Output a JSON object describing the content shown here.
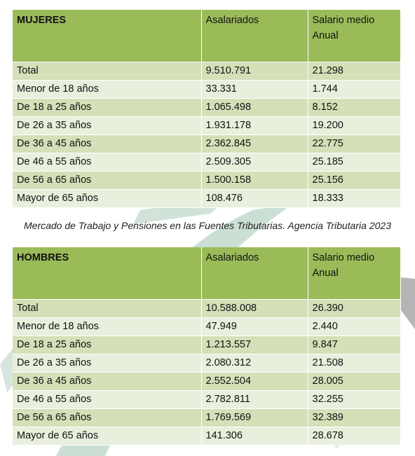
{
  "caption": "Mercado de Trabajo y Pensiones en las Fuentes Tributarias. Agencia Tributaria 2023",
  "mujeres": {
    "title": "MUJERES",
    "col_asalariados": "Asalariados",
    "col_salario_l1": "Salario medio",
    "col_salario_l2": "Anual",
    "rows": [
      {
        "label": "Total",
        "asalariados": "9.510.791",
        "salario": "21.298"
      },
      {
        "label": "Menor de 18 años",
        "asalariados": "33.331",
        "salario": "1.744"
      },
      {
        "label": "De 18 a 25 años",
        "asalariados": "1.065.498",
        "salario": "8.152"
      },
      {
        "label": "De 26 a 35 años",
        "asalariados": "1.931.178",
        "salario": "19.200"
      },
      {
        "label": "De 36 a 45 años",
        "asalariados": "2.362.845",
        "salario": "22.775"
      },
      {
        "label": "De 46 a 55 años",
        "asalariados": "2.509.305",
        "salario": "25.185"
      },
      {
        "label": "De 56 a 65 años",
        "asalariados": "1.500.158",
        "salario": "25.156"
      },
      {
        "label": "Mayor de 65 años",
        "asalariados": "108.476",
        "salario": "18.333"
      }
    ]
  },
  "hombres": {
    "title": "HOMBRES",
    "col_asalariados": "Asalariados",
    "col_salario_l1": "Salario medio",
    "col_salario_l2": "Anual",
    "rows": [
      {
        "label": "Total",
        "asalariados": "10.588.008",
        "salario": "26.390"
      },
      {
        "label": "Menor de 18 años",
        "asalariados": "47.949",
        "salario": "2.440"
      },
      {
        "label": "De 18 a 25 años",
        "asalariados": "1.213.557",
        "salario": "9.847"
      },
      {
        "label": "De 26 a 35 años",
        "asalariados": "2.080.312",
        "salario": "21.508"
      },
      {
        "label": "De 36 a 45 años",
        "asalariados": "2.552.504",
        "salario": "28.005"
      },
      {
        "label": "De 46 a 55 años",
        "asalariados": "2.782.811",
        "salario": "32.255"
      },
      {
        "label": "De 56 a 65 años",
        "asalariados": "1.769.569",
        "salario": "32.389"
      },
      {
        "label": "Mayor de 65 años",
        "asalariados": "141.306",
        "salario": "28.678"
      }
    ]
  },
  "colors": {
    "header_green": "#9bbb59",
    "row_dark": "#d3e0b8",
    "row_light": "#e9efdd",
    "watermark_green": "#c5dbd0",
    "watermark_grey": "#a8a8a8"
  }
}
